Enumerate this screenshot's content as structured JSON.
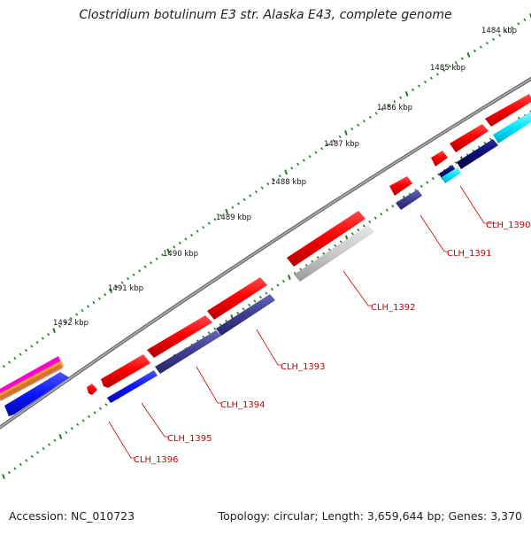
{
  "title": "Clostridium botulinum E3 str. Alaska E43, complete genome",
  "accession_text": "Accession: NC_010723",
  "summary_text": "Topology: circular; Length: 3,659,644 bp; Genes: 3,370",
  "kbp_labels": [
    "1484 kbp",
    "1485 kbp",
    "1486 kbp",
    "1487 kbp",
    "1488 kbp",
    "1489 kbp",
    "1490 kbp",
    "1491 kbp",
    "1492 kbp"
  ],
  "gene_labels": [
    "CLH_1390",
    "CLH_1391",
    "CLH_1392",
    "CLH_1393",
    "CLH_1394",
    "CLH_1395",
    "CLH_1396"
  ],
  "colors": {
    "cds_red": "#ff0000",
    "cds_navy": "#3d3d8f",
    "cds_darknavy": "#0a0a6e",
    "cds_blue": "#0a14ff",
    "cds_cyan": "#00e5ff",
    "cds_grey": "#c8c8c8",
    "tick_green": "#1f7a1f",
    "backbone": "#888888",
    "label_red": "#cc0000",
    "magenta": "#ff00cc",
    "orange": "#ff9933"
  }
}
